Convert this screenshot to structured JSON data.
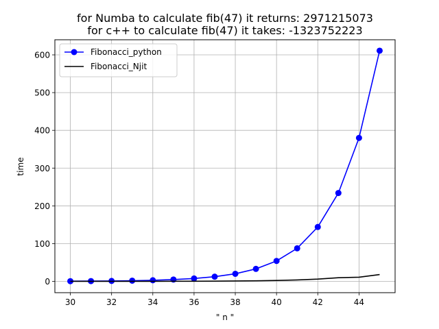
{
  "chart_data": {
    "type": "line",
    "title_lines": [
      "for Numba to calculate fib(47) it returns: 2971215073",
      "for c++ to calculate fib(47) it takes: -1323752223"
    ],
    "xlabel": "\" n \"",
    "ylabel": "time",
    "xlim": [
      29.25,
      45.75
    ],
    "ylim": [
      -30,
      640
    ],
    "x_ticks": [
      30,
      32,
      34,
      36,
      38,
      40,
      42,
      44
    ],
    "y_ticks": [
      0,
      100,
      200,
      300,
      400,
      500,
      600
    ],
    "grid": true,
    "legend_position": "top-left",
    "x": [
      30,
      31,
      32,
      33,
      34,
      35,
      36,
      37,
      38,
      39,
      40,
      41,
      42,
      43,
      44,
      45
    ],
    "series": [
      {
        "name": "Fibonacci_python",
        "color": "#0000ff",
        "marker": "circle",
        "values": [
          0.5,
          0.7,
          1.1,
          1.8,
          2.9,
          4.8,
          7.6,
          12.4,
          20.0,
          33.0,
          54.0,
          87.5,
          144.0,
          234.0,
          380.0,
          611.0
        ]
      },
      {
        "name": "Fibonacci_Njit",
        "color": "#000000",
        "marker": "none",
        "values": [
          0.02,
          0.03,
          0.05,
          0.08,
          0.13,
          0.21,
          0.34,
          0.55,
          0.9,
          1.4,
          2.3,
          3.7,
          6.0,
          9.7,
          11.0,
          18.0
        ]
      }
    ]
  }
}
